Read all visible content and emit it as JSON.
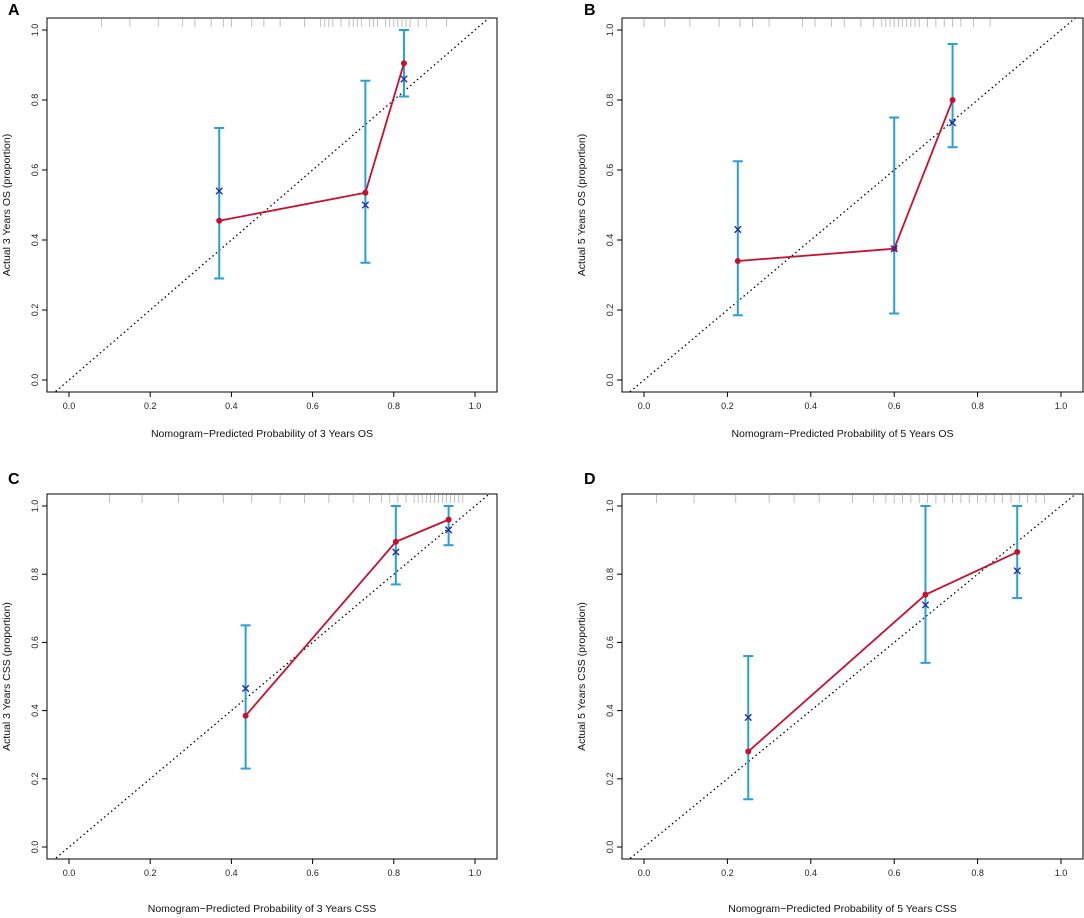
{
  "figure": {
    "description_labels": [
      "A",
      "B",
      "C",
      "D"
    ]
  },
  "colors": {
    "error_bar": "#2a9fd6",
    "calibration_line": "#c8102e",
    "observed_x": "#1f2fa8",
    "reference_line": "#000000",
    "rug": "#b0b0b0"
  },
  "chart_data": [
    {
      "panel_label": "A",
      "type": "scatter",
      "xlabel": "Nomogram−Predicted Probability of 3 Years OS",
      "ylabel": "Actual 3 Years OS (proportion)",
      "xlim": [
        0,
        1
      ],
      "ylim": [
        0,
        1
      ],
      "ticks": [
        "0.0",
        "0.2",
        "0.4",
        "0.6",
        "0.8",
        "1.0"
      ],
      "series": [
        {
          "name": "predicted",
          "x": [
            0.37,
            0.73,
            0.825
          ],
          "y": [
            0.455,
            0.535,
            0.905
          ]
        },
        {
          "name": "observed",
          "x": [
            0.37,
            0.73,
            0.825
          ],
          "y": [
            0.54,
            0.5,
            0.86
          ]
        },
        {
          "name": "ci_lower",
          "x": [
            0.37,
            0.73,
            0.825
          ],
          "y": [
            0.29,
            0.335,
            0.81
          ]
        },
        {
          "name": "ci_upper",
          "x": [
            0.37,
            0.73,
            0.825
          ],
          "y": [
            0.72,
            0.855,
            1.0
          ]
        }
      ],
      "rug": [
        0.08,
        0.15,
        0.22,
        0.28,
        0.31,
        0.35,
        0.38,
        0.4,
        0.45,
        0.48,
        0.52,
        0.58,
        0.62,
        0.63,
        0.64,
        0.65,
        0.67,
        0.69,
        0.7,
        0.71,
        0.72,
        0.74,
        0.75,
        0.76,
        0.78,
        0.79,
        0.8,
        0.81,
        0.82,
        0.83,
        0.84,
        0.86,
        0.88,
        0.93
      ]
    },
    {
      "panel_label": "B",
      "type": "scatter",
      "xlabel": "Nomogram−Predicted Probability of 5 Years OS",
      "ylabel": "Actual 5 Years OS (proportion)",
      "xlim": [
        0,
        1
      ],
      "ylim": [
        0,
        1
      ],
      "ticks": [
        "0.0",
        "0.2",
        "0.4",
        "0.6",
        "0.8",
        "1.0"
      ],
      "series": [
        {
          "name": "predicted",
          "x": [
            0.225,
            0.6,
            0.74
          ],
          "y": [
            0.34,
            0.375,
            0.8
          ]
        },
        {
          "name": "observed",
          "x": [
            0.225,
            0.6,
            0.74
          ],
          "y": [
            0.43,
            0.375,
            0.735
          ]
        },
        {
          "name": "ci_lower",
          "x": [
            0.225,
            0.6,
            0.74
          ],
          "y": [
            0.185,
            0.19,
            0.665
          ]
        },
        {
          "name": "ci_upper",
          "x": [
            0.225,
            0.6,
            0.74
          ],
          "y": [
            0.625,
            0.75,
            0.96
          ]
        }
      ],
      "rug": [
        0.0,
        0.05,
        0.11,
        0.18,
        0.23,
        0.26,
        0.3,
        0.38,
        0.41,
        0.45,
        0.48,
        0.52,
        0.55,
        0.57,
        0.58,
        0.59,
        0.6,
        0.61,
        0.62,
        0.63,
        0.64,
        0.65,
        0.66,
        0.68,
        0.7,
        0.72,
        0.74,
        0.76,
        0.79,
        0.83
      ]
    },
    {
      "panel_label": "C",
      "type": "scatter",
      "xlabel": "Nomogram−Predicted Probability of 3 Years CSS",
      "ylabel": "Actual 3 Years CSS (proportion)",
      "xlim": [
        0,
        1
      ],
      "ylim": [
        0,
        1
      ],
      "ticks": [
        "0.0",
        "0.2",
        "0.4",
        "0.6",
        "0.8",
        "1.0"
      ],
      "series": [
        {
          "name": "predicted",
          "x": [
            0.435,
            0.805,
            0.935
          ],
          "y": [
            0.385,
            0.895,
            0.96
          ]
        },
        {
          "name": "observed",
          "x": [
            0.435,
            0.805,
            0.935
          ],
          "y": [
            0.465,
            0.865,
            0.93
          ]
        },
        {
          "name": "ci_lower",
          "x": [
            0.435,
            0.805,
            0.935
          ],
          "y": [
            0.23,
            0.77,
            0.885
          ]
        },
        {
          "name": "ci_upper",
          "x": [
            0.435,
            0.805,
            0.935
          ],
          "y": [
            0.65,
            1.0,
            1.0
          ]
        }
      ],
      "rug": [
        0.1,
        0.18,
        0.27,
        0.38,
        0.45,
        0.52,
        0.58,
        0.64,
        0.7,
        0.74,
        0.77,
        0.79,
        0.81,
        0.83,
        0.85,
        0.86,
        0.87,
        0.88,
        0.89,
        0.9,
        0.91,
        0.92,
        0.93,
        0.94,
        0.95,
        0.96,
        0.97
      ]
    },
    {
      "panel_label": "D",
      "type": "scatter",
      "xlabel": "Nomogram−Predicted Probability of 5 Years CSS",
      "ylabel": "Actual 5 Years CSS (proportion)",
      "xlim": [
        0,
        1
      ],
      "ylim": [
        0,
        1
      ],
      "ticks": [
        "0.0",
        "0.2",
        "0.4",
        "0.6",
        "0.8",
        "1.0"
      ],
      "series": [
        {
          "name": "predicted",
          "x": [
            0.25,
            0.675,
            0.895
          ],
          "y": [
            0.28,
            0.74,
            0.865
          ]
        },
        {
          "name": "observed",
          "x": [
            0.25,
            0.675,
            0.895
          ],
          "y": [
            0.38,
            0.71,
            0.81
          ]
        },
        {
          "name": "ci_lower",
          "x": [
            0.25,
            0.675,
            0.895
          ],
          "y": [
            0.14,
            0.54,
            0.73
          ]
        },
        {
          "name": "ci_upper",
          "x": [
            0.25,
            0.675,
            0.895
          ],
          "y": [
            0.56,
            1.0,
            1.0
          ]
        }
      ],
      "rug": [
        0.03,
        0.12,
        0.22,
        0.3,
        0.36,
        0.42,
        0.5,
        0.55,
        0.58,
        0.6,
        0.62,
        0.64,
        0.66,
        0.68,
        0.7,
        0.72,
        0.74,
        0.76,
        0.78,
        0.8,
        0.82,
        0.84,
        0.86,
        0.88,
        0.9,
        0.92,
        0.94,
        0.96
      ]
    }
  ]
}
